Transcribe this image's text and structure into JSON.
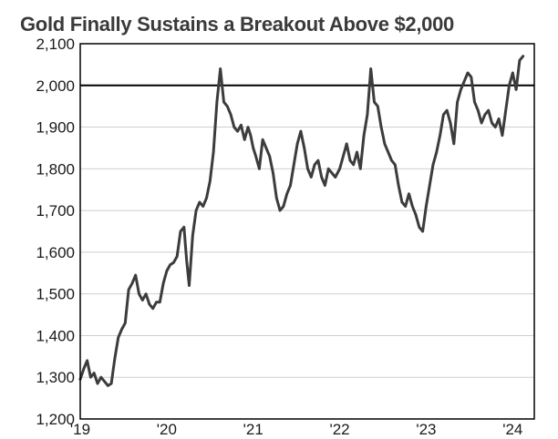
{
  "chart_data": {
    "type": "line",
    "title": "Gold Finally Sustains a Breakout Above $2,000",
    "xlabel": "",
    "ylabel": "",
    "ylim": [
      1200,
      2100
    ],
    "yticks": [
      1200,
      1300,
      1400,
      1500,
      1600,
      1700,
      1800,
      1900,
      2000,
      2100
    ],
    "ytick_labels": [
      "1,200",
      "1,300",
      "1,400",
      "1,500",
      "1,600",
      "1,700",
      "1,800",
      "1,900",
      "2,000",
      "2,100"
    ],
    "xlim": [
      2019.0,
      2024.25
    ],
    "xticks": [
      2019,
      2020,
      2021,
      2022,
      2023,
      2024
    ],
    "xtick_labels": [
      "'19",
      "'20",
      "'21",
      "'22",
      "'23",
      "'24"
    ],
    "grid": "horizontal",
    "reference_line": 2000,
    "colors": {
      "line": "#3c3c3c",
      "reference": "#000000",
      "grid": "#cfcfcf",
      "frame": "#000000"
    },
    "series": [
      {
        "x": [
          2019.0,
          2019.04,
          2019.08,
          2019.12,
          2019.16,
          2019.2,
          2019.24,
          2019.28,
          2019.32,
          2019.36,
          2019.4,
          2019.44,
          2019.48,
          2019.52,
          2019.56,
          2019.6,
          2019.64,
          2019.68,
          2019.72,
          2019.76,
          2019.8,
          2019.84,
          2019.88,
          2019.92,
          2019.96,
          2020.0,
          2020.04,
          2020.08,
          2020.12,
          2020.16,
          2020.2,
          2020.23,
          2020.26,
          2020.3,
          2020.34,
          2020.38,
          2020.42,
          2020.46,
          2020.5,
          2020.54,
          2020.58,
          2020.62,
          2020.66,
          2020.7,
          2020.74,
          2020.78,
          2020.82,
          2020.86,
          2020.9,
          2020.94,
          2020.97,
          2021.0,
          2021.03,
          2021.07,
          2021.11,
          2021.15,
          2021.19,
          2021.23,
          2021.27,
          2021.31,
          2021.35,
          2021.39,
          2021.43,
          2021.47,
          2021.51,
          2021.55,
          2021.59,
          2021.63,
          2021.67,
          2021.71,
          2021.75,
          2021.79,
          2021.83,
          2021.87,
          2021.91,
          2021.95,
          2022.0,
          2022.04,
          2022.08,
          2022.12,
          2022.16,
          2022.2,
          2022.24,
          2022.28,
          2022.32,
          2022.36,
          2022.4,
          2022.44,
          2022.48,
          2022.52,
          2022.56,
          2022.6,
          2022.64,
          2022.68,
          2022.72,
          2022.76,
          2022.8,
          2022.84,
          2022.88,
          2022.92,
          2022.96,
          2023.0,
          2023.04,
          2023.08,
          2023.12,
          2023.16,
          2023.2,
          2023.24,
          2023.28,
          2023.32,
          2023.36,
          2023.4,
          2023.44,
          2023.48,
          2023.52,
          2023.56,
          2023.6,
          2023.64,
          2023.68,
          2023.72,
          2023.76,
          2023.8,
          2023.84,
          2023.88,
          2023.92,
          2023.96,
          2024.0,
          2024.04,
          2024.08,
          2024.12
        ],
        "values": [
          1295,
          1320,
          1340,
          1300,
          1310,
          1285,
          1300,
          1290,
          1280,
          1285,
          1345,
          1395,
          1415,
          1430,
          1510,
          1525,
          1545,
          1500,
          1485,
          1500,
          1475,
          1465,
          1480,
          1480,
          1525,
          1555,
          1570,
          1575,
          1590,
          1650,
          1660,
          1580,
          1520,
          1640,
          1700,
          1720,
          1710,
          1730,
          1770,
          1840,
          1960,
          2040,
          1960,
          1950,
          1930,
          1900,
          1890,
          1905,
          1870,
          1900,
          1880,
          1850,
          1830,
          1800,
          1870,
          1850,
          1830,
          1790,
          1730,
          1700,
          1710,
          1740,
          1760,
          1810,
          1860,
          1890,
          1850,
          1800,
          1780,
          1810,
          1820,
          1780,
          1760,
          1800,
          1790,
          1780,
          1800,
          1830,
          1860,
          1820,
          1810,
          1840,
          1800,
          1880,
          1930,
          2040,
          1960,
          1950,
          1900,
          1860,
          1840,
          1820,
          1810,
          1760,
          1720,
          1710,
          1740,
          1710,
          1690,
          1660,
          1650,
          1710,
          1760,
          1810,
          1840,
          1880,
          1930,
          1940,
          1910,
          1860,
          1960,
          1990,
          2010,
          2030,
          2020,
          1960,
          1940,
          1910,
          1930,
          1940,
          1910,
          1900,
          1920,
          1880,
          1940,
          2000,
          2030,
          1990,
          2060,
          2070
        ]
      }
    ]
  }
}
